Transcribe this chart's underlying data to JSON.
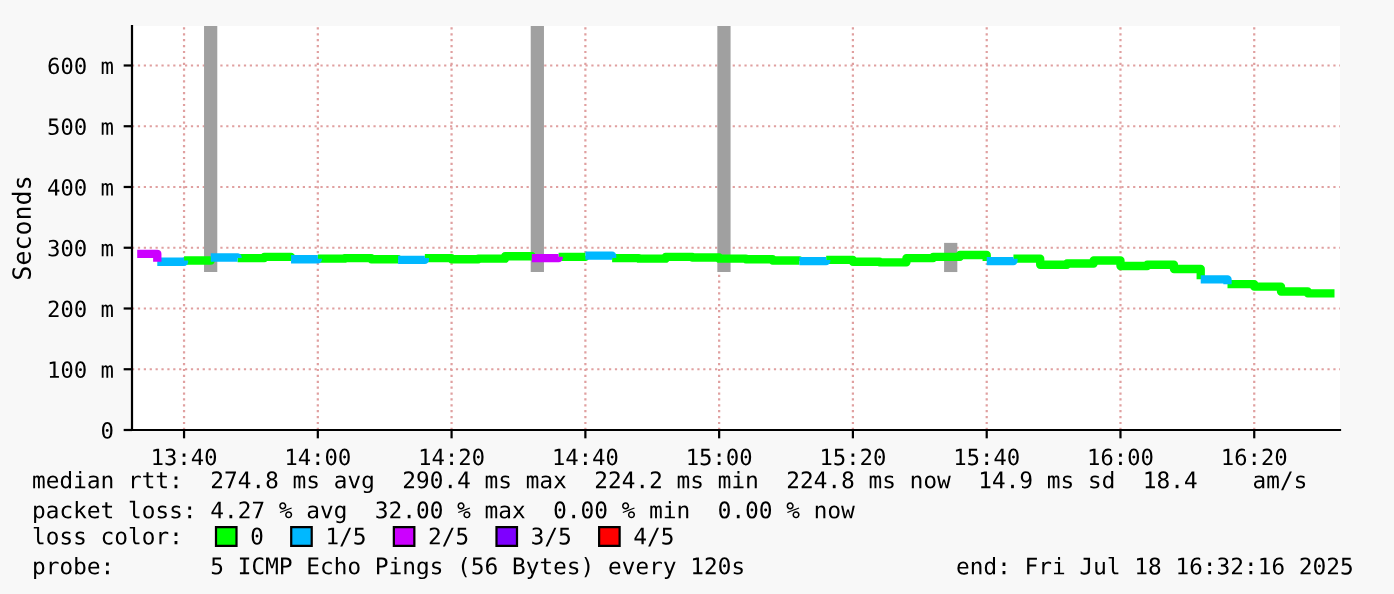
{
  "chart_data": {
    "type": "step",
    "ylabel": "Seconds",
    "series": [
      {
        "name": "0",
        "color": "#00ff00",
        "x": [
          13.6667,
          13.7333,
          null,
          13.8,
          13.8667,
          13.9333,
          null,
          14.0,
          14.0667,
          14.1333,
          14.2,
          null,
          14.2667,
          14.3333,
          14.4,
          14.4667,
          14.5333,
          null,
          14.6,
          14.6667,
          null,
          14.7333,
          14.8,
          14.8667,
          14.9333,
          15.0,
          15.0667,
          15.1333,
          15.2,
          null,
          15.2667,
          15.3333,
          15.4,
          15.4667,
          15.5333,
          15.6,
          15.6667,
          null,
          15.7333,
          15.8,
          15.8667,
          15.9333,
          16.0,
          16.0667,
          16.1333,
          16.2,
          null,
          16.2667,
          16.3333,
          16.4,
          16.4667,
          16.5333
        ],
        "values": [
          279,
          284,
          null,
          283,
          285,
          281,
          null,
          282,
          283,
          281,
          280,
          null,
          283,
          281,
          282,
          286,
          283,
          null,
          285,
          287,
          null,
          283,
          282,
          285,
          284,
          282,
          281,
          279,
          278,
          null,
          280,
          277,
          276,
          283,
          285,
          288,
          278,
          null,
          282,
          272,
          274,
          279,
          270,
          272,
          265,
          248,
          null,
          240,
          236,
          228,
          225,
          225
        ]
      },
      {
        "name": "1/5",
        "color": "#00b8ff",
        "x": [
          13.6,
          13.6667,
          null,
          13.7333,
          13.8,
          null,
          13.9333,
          14.0,
          null,
          14.2,
          14.2667,
          null,
          14.6667,
          14.7333,
          null,
          15.2,
          15.2667,
          null,
          15.6667,
          15.7333,
          null,
          16.2,
          16.2667
        ],
        "values": [
          277,
          279,
          null,
          284,
          283,
          null,
          281,
          282,
          null,
          280,
          283,
          null,
          287,
          283,
          null,
          278,
          280,
          null,
          278,
          282,
          null,
          248,
          240
        ]
      },
      {
        "name": "2/5",
        "color": "#cc00ff",
        "x": [
          13.55,
          13.6,
          null,
          14.5333,
          14.6
        ],
        "values": [
          290,
          277,
          null,
          283,
          285
        ]
      },
      {
        "name": "3/5",
        "color": "#7e00ff"
      },
      {
        "name": "4/5",
        "color": "#ff0000"
      },
      {
        "type": "bar",
        "color": "#a0a0a0",
        "x": [
          13.733,
          14.547,
          15.012,
          15.577
        ],
        "base": [
          260,
          260,
          260,
          260
        ],
        "values": [
          405,
          405,
          405,
          48
        ]
      }
    ],
    "xlim": [
      13.537,
      16.547
    ],
    "xticks": [
      {
        "value": 13.6667,
        "label": "13:40"
      },
      {
        "value": 14.0,
        "label": "14:00"
      },
      {
        "value": 14.3333,
        "label": "14:20"
      },
      {
        "value": 14.6667,
        "label": "14:40"
      },
      {
        "value": 15.0,
        "label": "15:00"
      },
      {
        "value": 15.3333,
        "label": "15:20"
      },
      {
        "value": 15.6667,
        "label": "15:40"
      },
      {
        "value": 16.0,
        "label": "16:00"
      },
      {
        "value": 16.3333,
        "label": "16:20"
      }
    ],
    "ylim": [
      0,
      665
    ],
    "yticks": [
      0,
      {
        "value": 100,
        "label": "100 m"
      },
      {
        "value": 200,
        "label": "200 m"
      },
      {
        "value": 300,
        "label": "300 m"
      },
      {
        "value": 400,
        "label": "400 m"
      },
      {
        "value": 500,
        "label": "500 m"
      },
      {
        "value": 600,
        "label": "600 m"
      }
    ],
    "grid": true,
    "legend": "bottom",
    "annotations": [
      "median rtt:  274.8 ms avg  290.4 ms max  224.2 ms min  224.8 ms now  14.9 ms sd  18.4    am/s",
      "packet loss: 4.27 % avg  32.00 % max  0.00 % min  0.00 % now",
      "loss color:",
      "probe:       5 ICMP Echo Pings (56 Bytes) every 120s",
      "end: Fri Jul 18 16:32:16 2025"
    ]
  }
}
